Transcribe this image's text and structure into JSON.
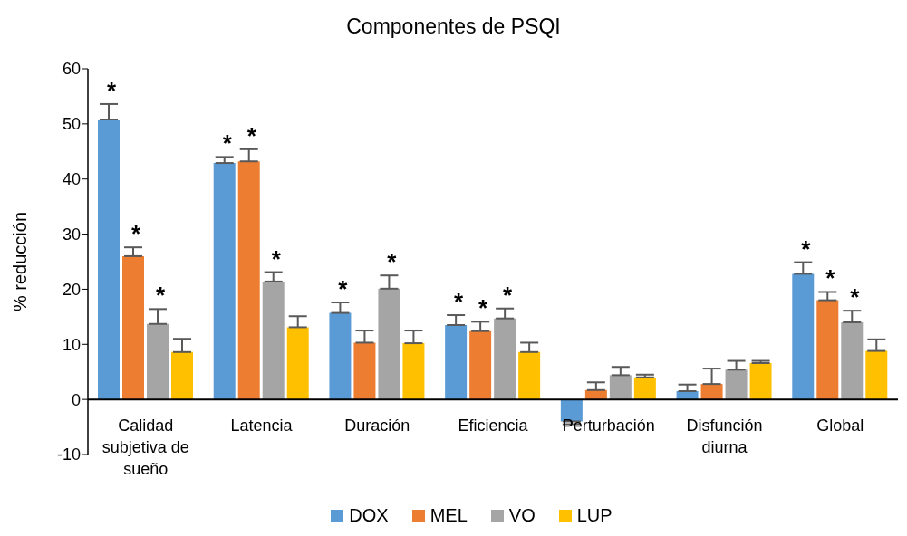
{
  "chart_data": {
    "type": "bar",
    "title": "Componentes de PSQI",
    "ylabel": "% reducción",
    "categories": [
      "Calidad subjetiva de sueño",
      "Latencia",
      "Duración",
      "Eficiencia",
      "Perturbación",
      "Disfunción diurna",
      "Global"
    ],
    "series": [
      {
        "name": "DOX",
        "color": "#5b9bd5",
        "values": [
          50.8,
          42.9,
          15.7,
          13.5,
          -4.0,
          1.5,
          22.8
        ],
        "value_labels": [
          "*",
          "*",
          "*",
          "*",
          null,
          null,
          "*"
        ],
        "errors": [
          [
            50.8,
            53.6
          ],
          [
            42.9,
            44.0
          ],
          [
            15.7,
            17.6
          ],
          [
            13.5,
            15.3
          ],
          [
            -4.5,
            -4.0
          ],
          [
            1.5,
            2.7
          ],
          [
            22.8,
            24.9
          ]
        ]
      },
      {
        "name": "MEL",
        "color": "#ed7d31",
        "values": [
          26.0,
          43.2,
          10.3,
          12.4,
          1.7,
          2.8,
          18.0
        ],
        "value_labels": [
          "*",
          "*",
          null,
          "*",
          null,
          null,
          "*"
        ],
        "errors": [
          [
            26.0,
            27.6
          ],
          [
            43.2,
            45.4
          ],
          [
            10.3,
            12.5
          ],
          [
            12.4,
            14.1
          ],
          [
            1.7,
            3.1
          ],
          [
            2.8,
            5.6
          ],
          [
            18.0,
            19.5
          ]
        ]
      },
      {
        "name": "VO",
        "color": "#a5a5a5",
        "values": [
          13.7,
          21.4,
          20.1,
          14.7,
          4.4,
          5.4,
          14.0
        ],
        "value_labels": [
          "*",
          "*",
          "*",
          "*",
          null,
          null,
          "*"
        ],
        "errors": [
          [
            13.7,
            16.4
          ],
          [
            21.4,
            23.1
          ],
          [
            20.1,
            22.5
          ],
          [
            14.7,
            16.5
          ],
          [
            4.4,
            5.9
          ],
          [
            5.4,
            7.0
          ],
          [
            14.0,
            16.1
          ]
        ]
      },
      {
        "name": "LUP",
        "color": "#ffc000",
        "values": [
          8.6,
          13.1,
          10.2,
          8.6,
          4.0,
          6.6,
          8.8
        ],
        "errors": [
          [
            8.6,
            11.0
          ],
          [
            13.1,
            15.1
          ],
          [
            10.2,
            12.5
          ],
          [
            8.6,
            10.3
          ],
          [
            4.0,
            4.5
          ],
          [
            6.6,
            7.0
          ],
          [
            8.8,
            10.9
          ]
        ]
      }
    ],
    "ylim": [
      -10,
      60
    ],
    "yticks": [
      -10,
      0,
      10,
      20,
      30,
      40,
      50,
      60
    ],
    "grid": false,
    "legend": "bottom"
  }
}
